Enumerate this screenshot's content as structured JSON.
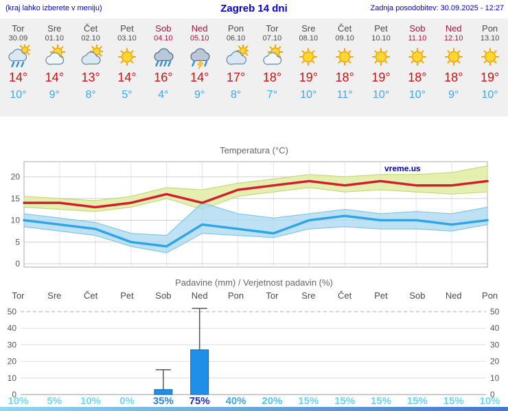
{
  "header": {
    "left_note": "(kraj lahko izberete v meniju)",
    "title": "Zagreb 14 dni",
    "updated": "Zadnja posodobitev: 30.09.2025 - 12:27"
  },
  "days": [
    {
      "name": "Tor",
      "date": "30.09",
      "weekend": false,
      "icon": "rain",
      "tmax": "14°",
      "tmin": "10°"
    },
    {
      "name": "Sre",
      "date": "01.10",
      "weekend": false,
      "icon": "partly-cloudy",
      "tmax": "14°",
      "tmin": "9°"
    },
    {
      "name": "Čet",
      "date": "02.10",
      "weekend": false,
      "icon": "mostly-cloudy",
      "tmax": "13°",
      "tmin": "8°"
    },
    {
      "name": "Pet",
      "date": "03.10",
      "weekend": false,
      "icon": "sunny",
      "tmax": "14°",
      "tmin": "5°"
    },
    {
      "name": "Sob",
      "date": "04.10",
      "weekend": true,
      "icon": "heavy-rain",
      "tmax": "16°",
      "tmin": "4°"
    },
    {
      "name": "Ned",
      "date": "05.10",
      "weekend": true,
      "icon": "thunder-rain",
      "tmax": "14°",
      "tmin": "9°"
    },
    {
      "name": "Pon",
      "date": "06.10",
      "weekend": false,
      "icon": "cloudy",
      "tmax": "17°",
      "tmin": "8°"
    },
    {
      "name": "Tor",
      "date": "07.10",
      "weekend": false,
      "icon": "partly-cloudy",
      "tmax": "18°",
      "tmin": "7°"
    },
    {
      "name": "Sre",
      "date": "08.10",
      "weekend": false,
      "icon": "sunny",
      "tmax": "19°",
      "tmin": "10°"
    },
    {
      "name": "Čet",
      "date": "09.10",
      "weekend": false,
      "icon": "sunny",
      "tmax": "18°",
      "tmin": "11°"
    },
    {
      "name": "Pet",
      "date": "10.10",
      "weekend": false,
      "icon": "sunny",
      "tmax": "19°",
      "tmin": "10°"
    },
    {
      "name": "Sob",
      "date": "11.10",
      "weekend": true,
      "icon": "sunny",
      "tmax": "18°",
      "tmin": "10°"
    },
    {
      "name": "Ned",
      "date": "12.10",
      "weekend": true,
      "icon": "sunny",
      "tmax": "18°",
      "tmin": "9°"
    },
    {
      "name": "Pon",
      "date": "13.10",
      "weekend": false,
      "icon": "sunny",
      "tmax": "19°",
      "tmin": "10°"
    }
  ],
  "chart_data": [
    {
      "type": "line",
      "title": "Temperatura (°C)",
      "watermark": "vreme.us",
      "x": [
        "Tor 30.09",
        "Sre 01.10",
        "Čet 02.10",
        "Pet 03.10",
        "Sob 04.10",
        "Ned 05.10",
        "Pon 06.10",
        "Tor 07.10",
        "Sre 08.10",
        "Čet 09.10",
        "Pet 10.10",
        "Sob 11.10",
        "Ned 12.10",
        "Pon 13.10"
      ],
      "ylim": [
        -0.8,
        23.5
      ],
      "yticks": [
        0,
        5,
        10,
        15,
        20
      ],
      "grid": true,
      "legend": "none",
      "series": [
        {
          "name": "max-temperature",
          "color": "#d02030",
          "values": [
            14,
            14,
            13,
            14,
            16,
            14,
            17,
            18,
            19,
            18,
            19,
            18,
            18,
            19
          ]
        },
        {
          "name": "min-temperature",
          "color": "#30a5e5",
          "values": [
            10,
            9,
            8,
            5,
            4,
            9,
            8,
            7,
            10,
            11,
            10,
            10,
            9,
            10
          ]
        }
      ],
      "bands": [
        {
          "name": "max-range",
          "fill": "#e2eda6",
          "edge": "#bcd470",
          "opacity": 0.9,
          "upper": [
            15.5,
            15,
            14.5,
            15.5,
            17.5,
            17,
            18.5,
            19.5,
            20.5,
            20,
            20.5,
            20.5,
            21,
            22.5
          ],
          "lower": [
            13,
            12.5,
            12,
            13,
            15,
            12.5,
            15.5,
            16.5,
            17.5,
            16.5,
            17,
            16.5,
            16,
            16.5
          ]
        },
        {
          "name": "min-range",
          "fill": "#a8d8f0",
          "edge": "#6fc0e8",
          "opacity": 0.75,
          "upper": [
            11.5,
            10.5,
            9.5,
            7,
            6.5,
            14,
            11.5,
            10.5,
            11.5,
            12.5,
            11.5,
            12,
            11.5,
            13
          ],
          "lower": [
            8.5,
            7.5,
            6.5,
            4,
            2.5,
            7,
            6.5,
            6,
            8,
            8.5,
            8,
            8,
            7.5,
            9
          ]
        }
      ]
    },
    {
      "type": "bar",
      "title": "Padavine (mm) / Verjetnost padavin (%)",
      "categories": [
        "Tor",
        "Sre",
        "Čet",
        "Pet",
        "Sob",
        "Ned",
        "Pon",
        "Tor",
        "Sre",
        "Čet",
        "Pet",
        "Sob",
        "Ned",
        "Pon"
      ],
      "weekend": [
        false,
        false,
        false,
        false,
        true,
        true,
        false,
        false,
        false,
        false,
        false,
        true,
        true,
        false
      ],
      "values": [
        0,
        0,
        0,
        0,
        3,
        27,
        0,
        0,
        0,
        0,
        0,
        0,
        0,
        0
      ],
      "whisker_max": [
        0,
        0,
        0,
        0,
        15,
        52,
        0,
        0,
        0,
        0,
        0,
        0,
        0,
        0
      ],
      "yticks": [
        0,
        10,
        20,
        30,
        40,
        50
      ],
      "ylim": [
        0,
        52
      ],
      "bar_color": "#1f8fe8",
      "bar_edge": "#1263a8",
      "probabilities": [
        {
          "label": "10%",
          "color": "#6fd8f2",
          "bold": false
        },
        {
          "label": "5%",
          "color": "#6fd8f2",
          "bold": false
        },
        {
          "label": "10%",
          "color": "#6fd8f2",
          "bold": false
        },
        {
          "label": "0%",
          "color": "#6fd8f2",
          "bold": false
        },
        {
          "label": "35%",
          "color": "#2e86c8",
          "bold": false
        },
        {
          "label": "75%",
          "color": "#1c2fb3",
          "bold": true
        },
        {
          "label": "40%",
          "color": "#3fa8dc",
          "bold": false
        },
        {
          "label": "20%",
          "color": "#55c4e8",
          "bold": false
        },
        {
          "label": "15%",
          "color": "#68d4f0",
          "bold": false
        },
        {
          "label": "15%",
          "color": "#68d4f0",
          "bold": false
        },
        {
          "label": "15%",
          "color": "#68d4f0",
          "bold": false
        },
        {
          "label": "15%",
          "color": "#68d4f0",
          "bold": false
        },
        {
          "label": "15%",
          "color": "#68d4f0",
          "bold": false
        },
        {
          "label": "10%",
          "color": "#6fd8f2",
          "bold": false
        }
      ]
    }
  ]
}
